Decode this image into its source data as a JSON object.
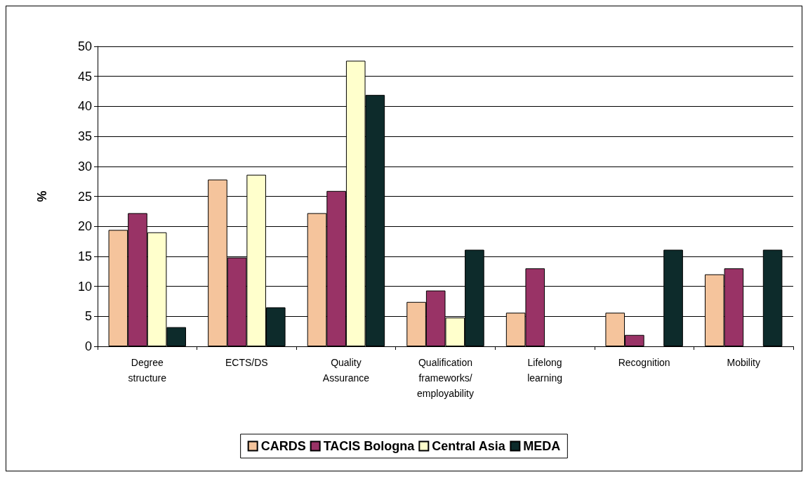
{
  "chart_data": {
    "type": "bar",
    "ylabel": "%",
    "categories": [
      "Degree structure",
      "ECTS/DS",
      "Quality Assurance",
      "Qualification frameworks/ employability",
      "Lifelong learning",
      "Recognition",
      "Mobility"
    ],
    "series": [
      {
        "name": "CARDS",
        "color": "#f5c49c",
        "values": [
          19.4,
          27.8,
          22.2,
          7.4,
          5.6,
          5.6,
          12.0
        ]
      },
      {
        "name": "TACIS Bologna",
        "color": "#993366",
        "values": [
          22.2,
          14.8,
          25.9,
          9.3,
          13.0,
          1.9,
          13.0
        ]
      },
      {
        "name": "Central Asia",
        "color": "#ffffcc",
        "values": [
          19.0,
          28.6,
          47.6,
          4.8,
          null,
          null,
          null
        ]
      },
      {
        "name": "MEDA",
        "color": "#0d2b2b",
        "values": [
          3.2,
          6.5,
          41.9,
          16.1,
          null,
          16.1,
          16.1
        ]
      }
    ],
    "ylim": [
      0,
      50
    ],
    "yticks": [
      0,
      5,
      10,
      15,
      20,
      25,
      30,
      35,
      40,
      45,
      50
    ],
    "grid": "y",
    "legend": "bottom"
  }
}
